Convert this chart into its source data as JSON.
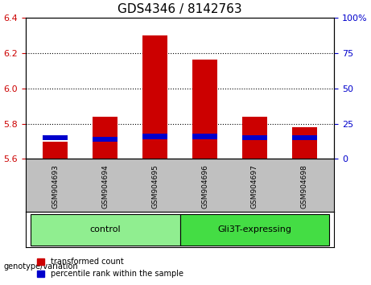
{
  "title": "GDS4346 / 8142763",
  "samples": [
    "GSM904693",
    "GSM904694",
    "GSM904695",
    "GSM904696",
    "GSM904697",
    "GSM904698"
  ],
  "groups": [
    "control",
    "control",
    "control",
    "Gli3T-expressing",
    "Gli3T-expressing",
    "Gli3T-expressing"
  ],
  "group_labels": [
    "control",
    "Gli3T-expressing"
  ],
  "group_colors": [
    "#90ee90",
    "#44cc44"
  ],
  "transformed_counts": [
    5.7,
    5.84,
    6.3,
    6.16,
    5.84,
    5.78
  ],
  "percentile_ranks": [
    15,
    14,
    16,
    16,
    15,
    15
  ],
  "ylim": [
    5.6,
    6.4
  ],
  "ylim_right": [
    0,
    100
  ],
  "yticks_left": [
    5.6,
    5.8,
    6.0,
    6.2,
    6.4
  ],
  "yticks_right": [
    0,
    25,
    50,
    75,
    100
  ],
  "bar_color_red": "#cc0000",
  "bar_color_blue": "#0000cc",
  "bar_width": 0.5,
  "grid_color": "#000000",
  "base_value": 5.6,
  "percentile_scale_factor": 0.8,
  "background_plot": "#ffffff",
  "background_label": "#c0c0c0",
  "background_group": "#90ee90",
  "background_group2": "#44dd44",
  "label_fontsize": 8,
  "title_fontsize": 11,
  "tick_fontsize": 8,
  "legend_fontsize": 7,
  "genotype_label": "genotype/variation"
}
